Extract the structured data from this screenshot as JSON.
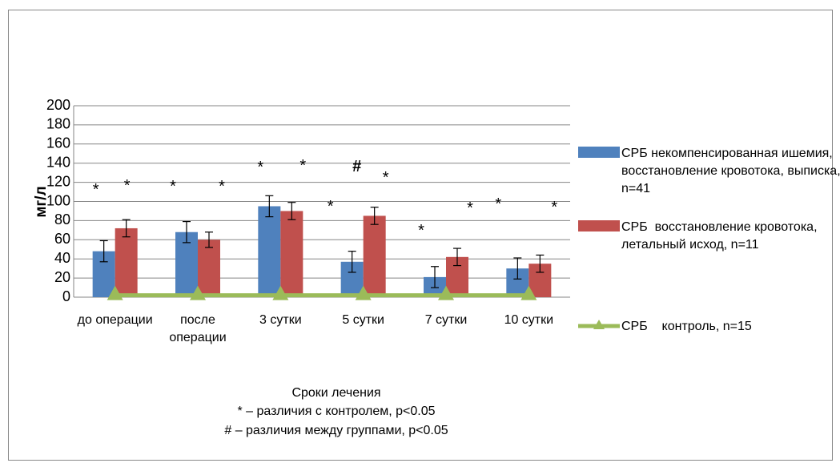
{
  "chart_data": {
    "type": "bar",
    "y_label": "мг/л",
    "x_label": "Сроки лечения",
    "notes": [
      "* – различия с контролем, p<0.05",
      "# – различия между группами, p<0.05"
    ],
    "categories": [
      "до операции",
      "после операции",
      "3 сутки",
      "5 сутки",
      "7 сутки",
      "10 сутки"
    ],
    "series": [
      {
        "name": "СРБ некомпенсированная ишемия, восстановление кровотока, выписка, n=41",
        "color": "#4f81bd",
        "kind": "bar",
        "values": [
          48,
          68,
          95,
          37,
          21,
          30
        ],
        "errors": [
          11,
          11,
          11,
          11,
          11,
          11
        ],
        "significance": [
          "*",
          "*",
          "*",
          "*",
          "*",
          "*"
        ]
      },
      {
        "name": "СРБ  восстановление кровотока, летальный исход, n=11",
        "color": "#c0504d",
        "kind": "bar",
        "values": [
          72,
          60,
          90,
          85,
          42,
          35
        ],
        "errors": [
          9,
          8,
          9,
          9,
          9,
          9
        ],
        "significance": [
          "*",
          "*",
          "*",
          "*",
          "*",
          "*"
        ],
        "group_difference": [
          null,
          null,
          null,
          "#",
          null,
          null
        ]
      },
      {
        "name": "СРБ    контроль, n=15",
        "color": "#9bbb59",
        "kind": "line",
        "values": [
          2,
          2,
          2,
          2,
          2,
          2
        ]
      }
    ],
    "ylim": [
      0,
      200
    ],
    "yticks": [
      0,
      20,
      40,
      60,
      80,
      100,
      120,
      140,
      160,
      180,
      200
    ],
    "grid": true
  }
}
